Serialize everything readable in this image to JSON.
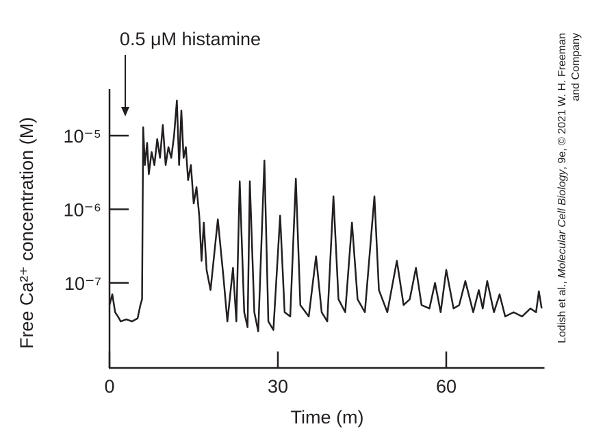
{
  "chart_data": {
    "type": "line",
    "annotation": "0.5 μM histamine",
    "xlabel": "Time (m)",
    "ylabel": "Free Ca²⁺ concentration (M)",
    "yscale": "log",
    "color": "#231f20",
    "xlim": [
      0,
      77.5
    ],
    "ylim": [
      7e-09,
      4.3e-05
    ],
    "xticks": [
      0,
      30,
      60
    ],
    "yticks": [
      {
        "value": 1e-05,
        "label": "10⁻⁵"
      },
      {
        "value": 1e-06,
        "label": "10⁻⁶"
      },
      {
        "value": 1e-07,
        "label": "10⁻⁷"
      }
    ],
    "x": [
      0,
      0.5,
      1,
      1.5,
      2,
      3,
      4,
      5,
      5.5,
      5.8,
      6.0,
      6.3,
      6.7,
      7,
      7.5,
      8,
      8.5,
      9,
      9.5,
      10,
      10.5,
      11,
      11.5,
      12,
      12.4,
      12.8,
      13.2,
      13.6,
      14,
      14.5,
      15,
      15.5,
      16,
      16.4,
      16.8,
      17.3,
      18,
      19.3,
      20.3,
      21,
      22,
      22.6,
      23.2,
      24,
      24.6,
      25,
      25.8,
      26.5,
      27.6,
      28.3,
      29.2,
      30.4,
      31.2,
      32.2,
      33.2,
      34,
      35.5,
      36.8,
      37.8,
      38.8,
      39.9,
      40.8,
      42,
      43.2,
      44.2,
      45.5,
      47.2,
      48,
      49.5,
      51.2,
      52.4,
      53.5,
      54.6,
      55.6,
      57,
      58,
      59,
      60,
      61.3,
      62.3,
      63.4,
      64.8,
      65.8,
      66.5,
      67.3,
      68.5,
      69.5,
      70.5,
      72,
      73.5,
      75,
      76,
      76.5,
      77
    ],
    "values": [
      5e-08,
      7e-08,
      4e-08,
      3.5e-08,
      3e-08,
      3.2e-08,
      3e-08,
      3.3e-08,
      5e-08,
      6e-08,
      1.3e-05,
      4e-06,
      8e-06,
      3e-06,
      6e-06,
      4e-06,
      9e-06,
      5e-06,
      1.4e-05,
      4e-06,
      7e-06,
      5e-06,
      1e-05,
      3e-05,
      4e-06,
      2.2e-05,
      5e-06,
      7e-06,
      2.5e-06,
      4e-06,
      1.2e-06,
      2e-06,
      8e-07,
      2e-07,
      6.6e-07,
      1.5e-07,
      8e-08,
      7.3e-07,
      1.2e-07,
      3e-08,
      1.6e-07,
      3e-08,
      2.4e-06,
      4e-08,
      2.5e-08,
      2.4e-06,
      4e-08,
      2.2e-08,
      4.6e-06,
      3e-08,
      2.3e-08,
      8.2e-07,
      4e-08,
      3.5e-08,
      2.6e-06,
      5e-08,
      3.5e-08,
      2.3e-07,
      4e-08,
      3e-08,
      1.5e-06,
      6e-08,
      4e-08,
      6.6e-07,
      6e-08,
      4e-08,
      1.5e-06,
      8e-08,
      4e-08,
      2e-07,
      5e-08,
      6e-08,
      1.6e-07,
      5e-08,
      4.5e-08,
      1e-07,
      4e-08,
      1.5e-07,
      4.5e-08,
      5e-08,
      1.06e-07,
      4e-08,
      8e-08,
      4.5e-08,
      1.06e-07,
      4e-08,
      7e-08,
      3.5e-08,
      4e-08,
      3.5e-08,
      4.5e-08,
      4e-08,
      7.7e-08,
      4.5e-08
    ]
  },
  "credit": {
    "line1": [
      "Lodish et al., ",
      "Molecular Cell Biology",
      ", 9e, © 2021 W. H. Freeman"
    ],
    "line2": "and Company"
  }
}
